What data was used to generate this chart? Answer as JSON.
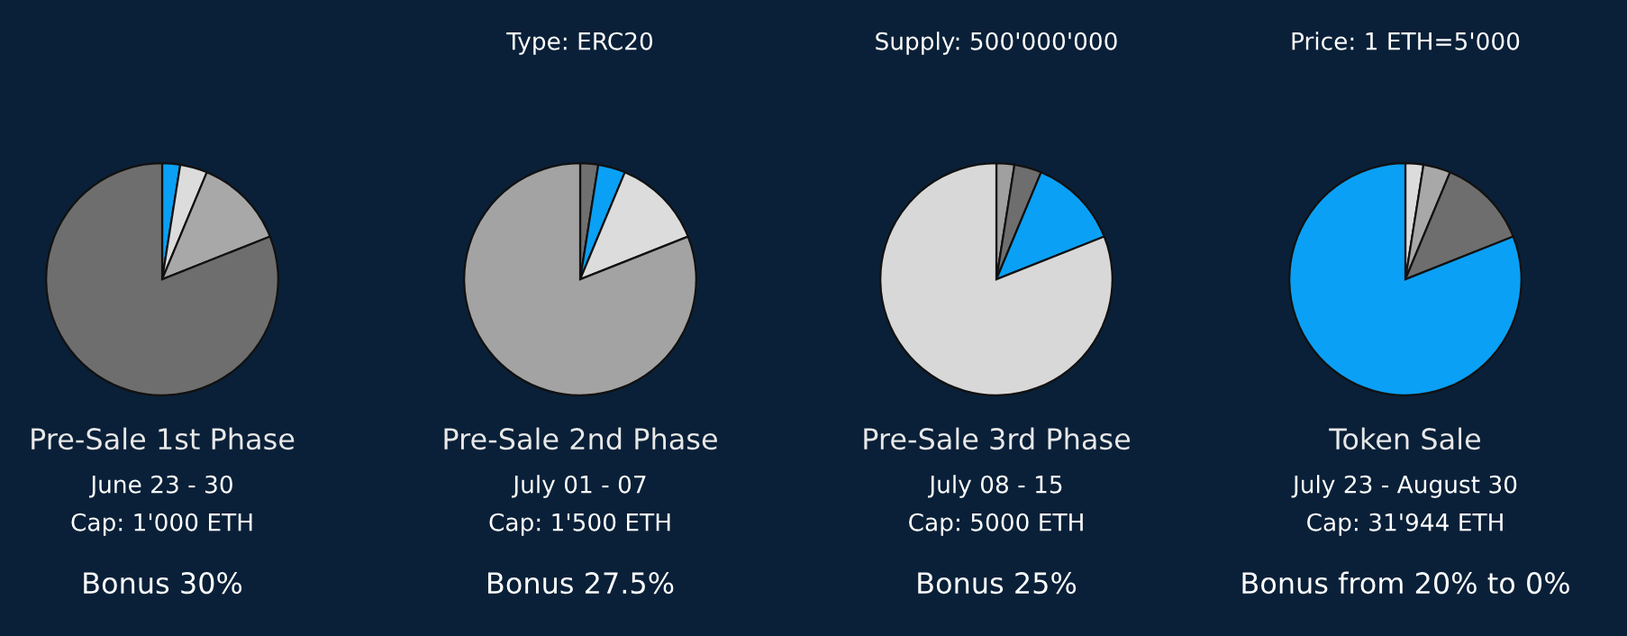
{
  "chart_data": [
    {
      "type": "pie",
      "title": "Pre-Sale 1st Phase",
      "categories": [
        null,
        null,
        null,
        null
      ],
      "values": [
        2.5,
        3.8,
        12.7,
        81.0
      ],
      "colors": [
        "#0aa0f5",
        "#dcdcdc",
        "#a8a8a8",
        "#6e6e6e"
      ],
      "annotations": [
        "June 23 - 30",
        "Cap: 1'000 ETH",
        "Bonus 30%"
      ]
    },
    {
      "type": "pie",
      "subtitle": "Type: ERC20",
      "title": "Pre-Sale 2nd Phase",
      "categories": [
        null,
        null,
        null,
        null
      ],
      "values": [
        2.5,
        3.8,
        12.7,
        81.0
      ],
      "colors": [
        "#707070",
        "#0aa0f5",
        "#dcdcdc",
        "#a3a3a3"
      ],
      "annotations": [
        "July 01 - 07",
        "Cap: 1'500 ETH",
        "Bonus 27.5%"
      ]
    },
    {
      "type": "pie",
      "subtitle": "Supply: 500'000'000",
      "title": "Pre-Sale 3rd Phase",
      "categories": [
        null,
        null,
        null,
        null
      ],
      "values": [
        2.5,
        3.8,
        12.7,
        81.0
      ],
      "colors": [
        "#a0a0a0",
        "#6e6e6e",
        "#0aa0f5",
        "#d8d8d8"
      ],
      "annotations": [
        "July 08 - 15",
        "Cap: 5000 ETH",
        "Bonus 25%"
      ]
    },
    {
      "type": "pie",
      "subtitle": "Price: 1 ETH=5'000",
      "title": "Token Sale",
      "categories": [
        null,
        null,
        null,
        null
      ],
      "values": [
        2.5,
        3.8,
        12.7,
        81.0
      ],
      "colors": [
        "#dcdcdc",
        "#a8a8a8",
        "#6e6e6e",
        "#0aa0f5"
      ],
      "annotations": [
        "July 23 - August 30",
        "Cap: 31'944 ETH",
        "Bonus from 20% to 0%"
      ]
    }
  ]
}
